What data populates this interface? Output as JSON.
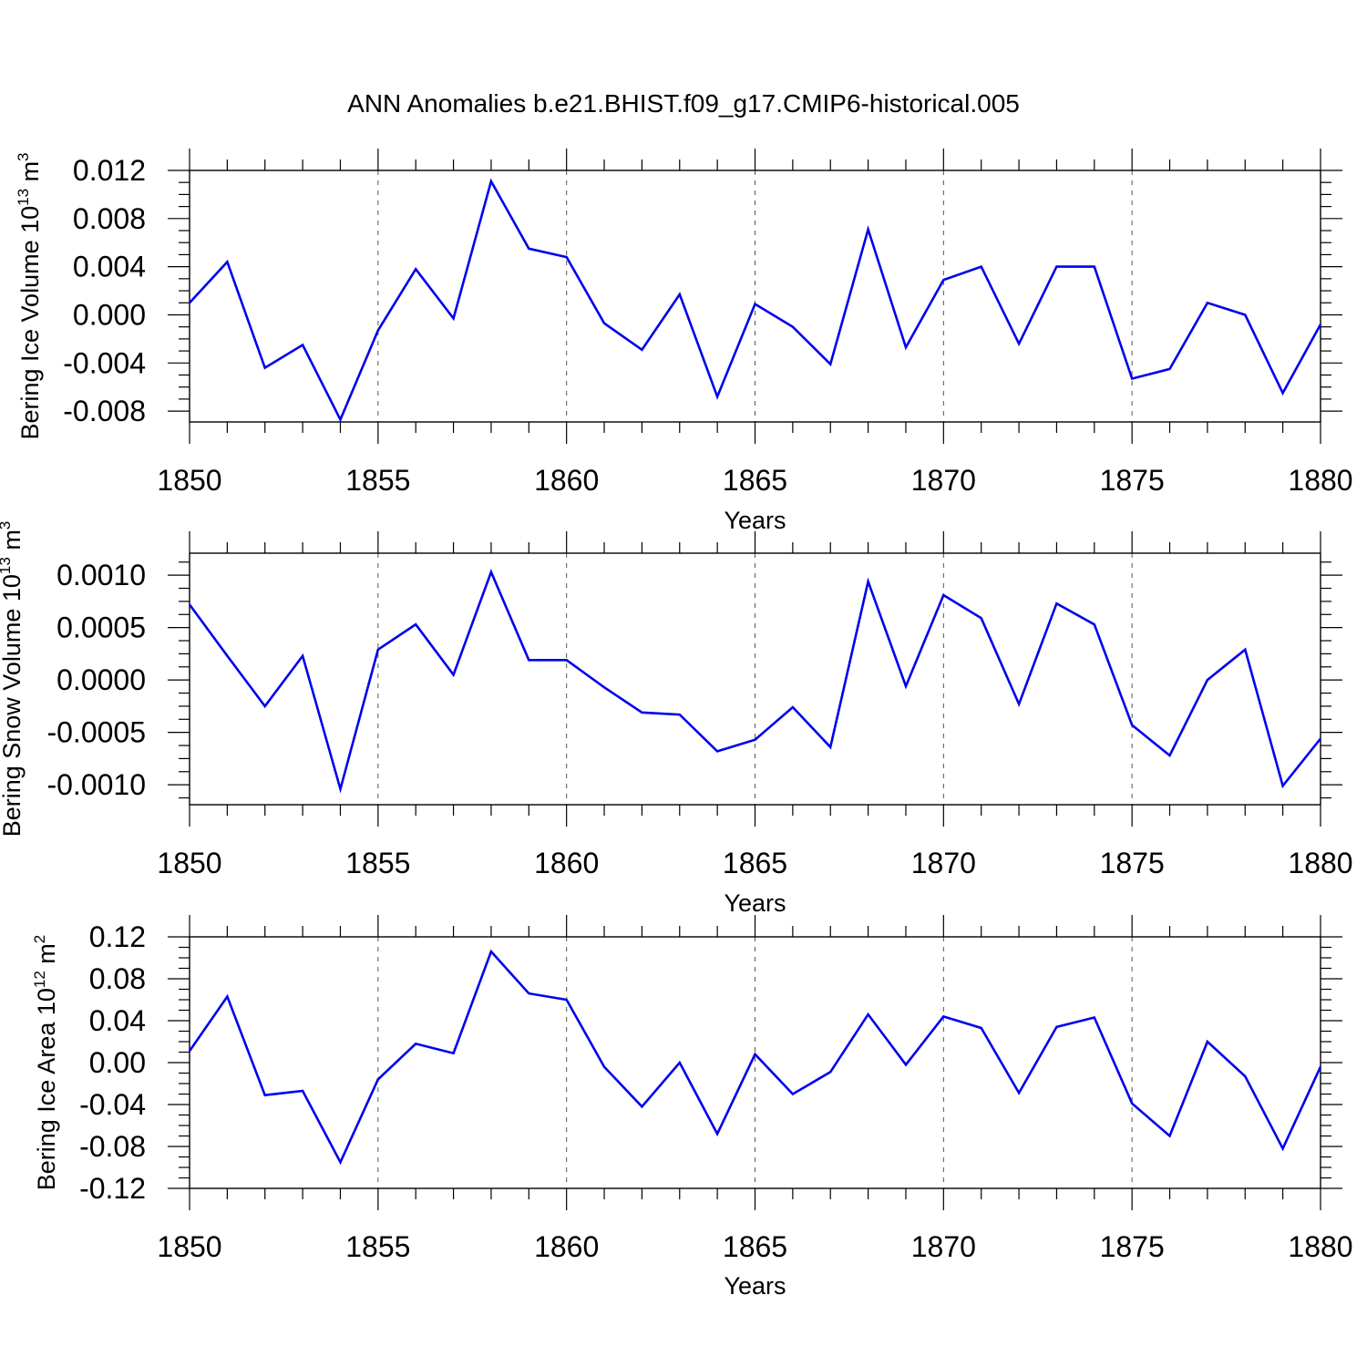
{
  "figure_title": "ANN Anomalies b.e21.BHIST.f09_g17.CMIP6-historical.005",
  "colors": {
    "line": "#0000ee",
    "axis": "#000000",
    "grid": "#555555"
  },
  "chart_data": [
    {
      "type": "line",
      "xlabel": "Years",
      "ylabel_main": "Bering Ice Volume 10",
      "ylabel_sup": "13",
      "ylabel_unit": " m",
      "ylabel_unit_sup": "3",
      "xlim": [
        1850,
        1880
      ],
      "ylim": [
        -0.0089,
        0.012
      ],
      "xticks": [
        1850,
        1855,
        1860,
        1865,
        1870,
        1875,
        1880
      ],
      "xtick_labels": [
        "1850",
        "1855",
        "1860",
        "1865",
        "1870",
        "1875",
        "1880"
      ],
      "yticks": [
        0.012,
        0.008,
        0.004,
        0.0,
        -0.004,
        -0.008
      ],
      "ytick_labels": [
        "0.012",
        "0.008",
        "0.004",
        "0.000",
        "-0.004",
        "-0.008"
      ],
      "grid_x": true,
      "series": [
        {
          "name": "Bering Ice Volume",
          "x": [
            1850,
            1851,
            1852,
            1853,
            1854,
            1855,
            1856,
            1857,
            1858,
            1859,
            1860,
            1861,
            1862,
            1863,
            1864,
            1865,
            1866,
            1867,
            1868,
            1869,
            1870,
            1871,
            1872,
            1873,
            1874,
            1875,
            1876,
            1877,
            1878,
            1879,
            1880
          ],
          "values": [
            0.001,
            0.0044,
            -0.0044,
            -0.0025,
            -0.0087,
            -0.0013,
            0.0038,
            -0.0003,
            0.0111,
            0.0055,
            0.0048,
            -0.0007,
            -0.0029,
            0.0017,
            -0.0068,
            0.0009,
            -0.001,
            -0.0041,
            0.0071,
            -0.0027,
            0.0029,
            0.004,
            -0.0024,
            0.004,
            0.004,
            -0.0053,
            -0.0045,
            0.001,
            0.0,
            -0.0065,
            -0.0008
          ]
        }
      ]
    },
    {
      "type": "line",
      "xlabel": "Years",
      "ylabel_main": "Bering Snow Volume 10",
      "ylabel_sup": "13",
      "ylabel_unit": " m",
      "ylabel_unit_sup": "3",
      "xlim": [
        1850,
        1880
      ],
      "ylim": [
        -0.00119,
        0.00121
      ],
      "xticks": [
        1850,
        1855,
        1860,
        1865,
        1870,
        1875,
        1880
      ],
      "xtick_labels": [
        "1850",
        "1855",
        "1860",
        "1865",
        "1870",
        "1875",
        "1880"
      ],
      "yticks": [
        0.001,
        0.0005,
        0.0,
        -0.0005,
        -0.001
      ],
      "ytick_labels": [
        "0.0010",
        "0.0005",
        "0.0000",
        "-0.0005",
        "-0.0010"
      ],
      "grid_x": true,
      "series": [
        {
          "name": "Bering Snow Volume",
          "x": [
            1850,
            1851,
            1852,
            1853,
            1854,
            1855,
            1856,
            1857,
            1858,
            1859,
            1860,
            1861,
            1862,
            1863,
            1864,
            1865,
            1866,
            1867,
            1868,
            1869,
            1870,
            1871,
            1872,
            1873,
            1874,
            1875,
            1876,
            1877,
            1878,
            1879,
            1880
          ],
          "values": [
            0.00072,
            0.00023,
            -0.00025,
            0.00023,
            -0.00104,
            0.00029,
            0.00053,
            5e-05,
            0.00103,
            0.00019,
            0.00019,
            -7e-05,
            -0.00031,
            -0.00033,
            -0.00068,
            -0.00057,
            -0.00026,
            -0.00064,
            0.00094,
            -6e-05,
            0.00081,
            0.00059,
            -0.00023,
            0.00073,
            0.00053,
            -0.00043,
            -0.00072,
            0.0,
            0.00029,
            -0.00101,
            -0.00056
          ]
        }
      ]
    },
    {
      "type": "line",
      "xlabel": "Years",
      "ylabel_main": "Bering Ice Area 10",
      "ylabel_sup": "12",
      "ylabel_unit": " m",
      "ylabel_unit_sup": "2",
      "xlim": [
        1850,
        1880
      ],
      "ylim": [
        -0.12,
        0.12
      ],
      "xticks": [
        1850,
        1855,
        1860,
        1865,
        1870,
        1875,
        1880
      ],
      "xtick_labels": [
        "1850",
        "1855",
        "1860",
        "1865",
        "1870",
        "1875",
        "1880"
      ],
      "yticks": [
        0.12,
        0.08,
        0.04,
        0.0,
        -0.04,
        -0.08,
        -0.12
      ],
      "ytick_labels": [
        "0.12",
        "0.08",
        "0.04",
        "0.00",
        "-0.04",
        "-0.08",
        "-0.12"
      ],
      "grid_x": true,
      "series": [
        {
          "name": "Bering Ice Area",
          "x": [
            1850,
            1851,
            1852,
            1853,
            1854,
            1855,
            1856,
            1857,
            1858,
            1859,
            1860,
            1861,
            1862,
            1863,
            1864,
            1865,
            1866,
            1867,
            1868,
            1869,
            1870,
            1871,
            1872,
            1873,
            1874,
            1875,
            1876,
            1877,
            1878,
            1879,
            1880
          ],
          "values": [
            0.011,
            0.063,
            -0.031,
            -0.027,
            -0.095,
            -0.016,
            0.018,
            0.009,
            0.106,
            0.066,
            0.06,
            -0.004,
            -0.042,
            0.0,
            -0.068,
            0.008,
            -0.03,
            -0.009,
            0.046,
            -0.002,
            0.044,
            0.033,
            -0.029,
            0.034,
            0.043,
            -0.039,
            -0.07,
            0.02,
            -0.013,
            -0.082,
            -0.004
          ]
        }
      ]
    }
  ]
}
